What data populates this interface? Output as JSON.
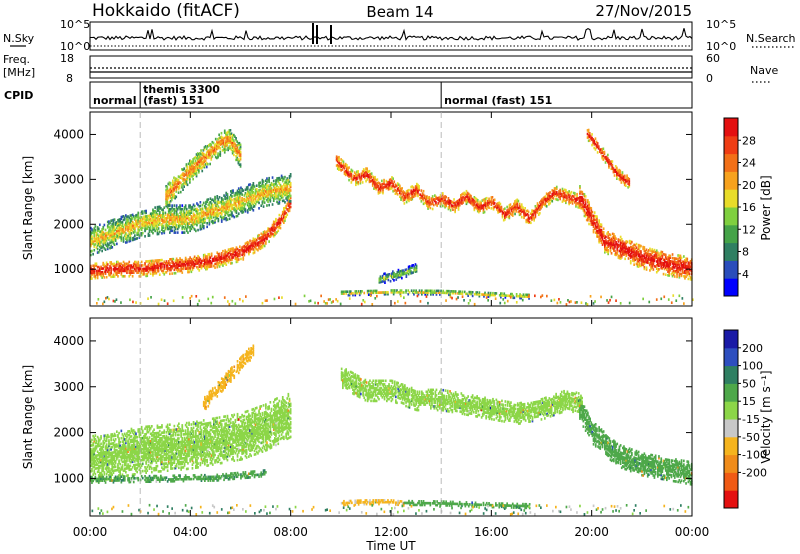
{
  "header": {
    "station": "Hokkaido (fitACF)",
    "beam": "Beam 14",
    "date": "27/Nov/2015"
  },
  "noise_panel": {
    "left_label": "N.Sky",
    "right_label": "N.Search",
    "ticks_left": [
      "10^5",
      "10^0"
    ],
    "ticks_right": [
      "10^5",
      "10^0"
    ]
  },
  "freq_panel": {
    "left_label_line1": "Freq.",
    "left_label_line2": "[MHz]",
    "right_label": "Nave",
    "ticks_left": [
      "18",
      "8"
    ],
    "ticks_right": [
      "60",
      "0"
    ]
  },
  "cpid_panel": {
    "label": "CPID",
    "segments": [
      {
        "text": "normal",
        "start_hour": 0.0
      },
      {
        "text": "themis 3300",
        "start_hour": 2.0,
        "text2": "(fast) 151"
      },
      {
        "text": "normal (fast) 151",
        "start_hour": 14.0
      }
    ]
  },
  "colors": {
    "power": [
      "#0000ff",
      "#2a4dbb",
      "#2f7f62",
      "#45a348",
      "#7fcf3f",
      "#e8dc2a",
      "#f7a21e",
      "#f27018",
      "#ef3d14",
      "#e41010"
    ],
    "velocity_scale": [
      "#1a1aa6",
      "#2e4fbf",
      "#2f7f62",
      "#4ea84a",
      "#8cd648",
      "#c8c8c8",
      "#f5b41e",
      "#f08c1a",
      "#f05a14",
      "#e41010"
    ]
  },
  "chart_data": [
    {
      "type": "heatmap",
      "title": "Power",
      "xlabel": "",
      "ylabel": "Slant Range [km]",
      "xlim": [
        0,
        24
      ],
      "ylim": [
        180,
        4500
      ],
      "yticks": [
        1000,
        2000,
        3000,
        4000
      ],
      "ytick_labels": [
        "1000",
        "2000",
        "3000",
        "4000"
      ],
      "colorbar": {
        "label": "Power [dB]",
        "range": [
          0,
          32
        ],
        "ticks": [
          4,
          8,
          12,
          16,
          20,
          24,
          28
        ],
        "tick_labels": [
          "4",
          "8",
          "12",
          "16",
          "20",
          "24",
          "28"
        ]
      },
      "bands": [
        {
          "t": [
            0.0,
            1.0,
            2.0,
            3.0,
            4.0,
            5.0,
            6.0,
            7.0,
            7.6,
            8.0
          ],
          "center": [
            950,
            1000,
            1000,
            1050,
            1100,
            1200,
            1350,
            1700,
            2100,
            2500
          ],
          "width": 350,
          "power": 25
        },
        {
          "t": [
            0.0,
            1.0,
            2.0,
            3.0,
            4.0,
            5.0,
            6.0,
            7.0,
            8.0
          ],
          "center": [
            1600,
            1800,
            2000,
            2100,
            2100,
            2300,
            2500,
            2700,
            2800
          ],
          "width": 600,
          "power": 15
        },
        {
          "t": [
            3.0,
            4.0,
            5.0,
            5.5,
            6.0
          ],
          "center": [
            2600,
            3200,
            3700,
            3900,
            3500
          ],
          "width": 500,
          "power": 18
        },
        {
          "t": [
            9.8,
            10.5,
            11.0,
            11.5,
            12.0,
            12.5,
            13.0,
            13.5,
            14.0,
            14.5,
            15.0,
            15.5,
            16.0,
            16.5,
            17.0,
            17.5,
            18.0,
            18.5,
            19.0,
            19.5
          ],
          "center": [
            3400,
            3000,
            3100,
            2800,
            2900,
            2600,
            2750,
            2450,
            2550,
            2400,
            2600,
            2350,
            2500,
            2200,
            2400,
            2100,
            2450,
            2700,
            2600,
            2500
          ],
          "width": 300,
          "power": 24
        },
        {
          "t": [
            19.5,
            20.0,
            20.5,
            21.0,
            22.0,
            23.0,
            24.0
          ],
          "center": [
            2600,
            2100,
            1600,
            1500,
            1250,
            1100,
            1000
          ],
          "width": 500,
          "power": 26
        },
        {
          "t": [
            19.8,
            20.5,
            21.0,
            21.5
          ],
          "center": [
            4000,
            3500,
            3100,
            2900
          ],
          "width": 250,
          "power": 25
        },
        {
          "t": [
            10.0,
            12.0,
            14.0,
            16.0,
            17.5
          ],
          "center": [
            450,
            480,
            470,
            420,
            380
          ],
          "width": 100,
          "power": 14
        },
        {
          "t": [
            11.5,
            12.5,
            13.0
          ],
          "center": [
            750,
            900,
            1000
          ],
          "width": 200,
          "power": 10
        }
      ]
    },
    {
      "type": "heatmap",
      "title": "Velocity",
      "xlabel": "Time UT",
      "ylabel": "Slant Range [km]",
      "xlim": [
        0,
        24
      ],
      "ylim": [
        180,
        4500
      ],
      "yticks": [
        1000,
        2000,
        3000,
        4000
      ],
      "ytick_labels": [
        "1000",
        "2000",
        "3000",
        "4000"
      ],
      "xticks": [
        0,
        4,
        8,
        12,
        16,
        20,
        24
      ],
      "xtick_labels": [
        "00:00",
        "04:00",
        "08:00",
        "12:00",
        "16:00",
        "20:00",
        "00:00"
      ],
      "colorbar": {
        "label": "Velocity [m s⁻¹]",
        "range": [
          -250,
          250
        ],
        "ticks": [
          200,
          100,
          50,
          15,
          -15,
          -50,
          -100,
          -200
        ],
        "tick_labels": [
          "200",
          "100",
          "50",
          "15",
          "-15",
          "-50",
          "-100",
          "-200"
        ]
      },
      "bands": [
        {
          "t": [
            0.0,
            2.0,
            4.0,
            6.0,
            7.0,
            8.0
          ],
          "center": [
            1400,
            1600,
            1700,
            1900,
            2100,
            2400
          ],
          "width": 1000,
          "vel": 0
        },
        {
          "t": [
            10.0,
            11.0,
            12.0,
            13.0,
            14.0,
            15.0,
            16.0,
            17.0,
            18.0,
            19.0,
            19.6
          ],
          "center": [
            3200,
            2900,
            2900,
            2700,
            2700,
            2600,
            2500,
            2400,
            2500,
            2700,
            2600
          ],
          "width": 450,
          "vel": 0
        },
        {
          "t": [
            19.5,
            20.0,
            21.0,
            22.0,
            23.0,
            24.0
          ],
          "center": [
            2500,
            2000,
            1500,
            1300,
            1200,
            1100
          ],
          "width": 500,
          "vel": 30
        },
        {
          "t": [
            10.0,
            11.0,
            12.0,
            12.5
          ],
          "center": [
            450,
            470,
            470,
            440
          ],
          "width": 90,
          "vel": -60
        },
        {
          "t": [
            12.5,
            14.0,
            16.0,
            17.5
          ],
          "center": [
            450,
            440,
            400,
            380
          ],
          "width": 80,
          "vel": 35
        },
        {
          "t": [
            0.0,
            3.0,
            5.0,
            7.0
          ],
          "center": [
            950,
            980,
            1000,
            1100
          ],
          "width": 120,
          "vel": 40
        },
        {
          "t": [
            4.5,
            5.5,
            6.5
          ],
          "center": [
            2600,
            3200,
            3800
          ],
          "width": 300,
          "vel": -70
        }
      ]
    }
  ],
  "x_axis": {
    "label": "Time UT"
  }
}
